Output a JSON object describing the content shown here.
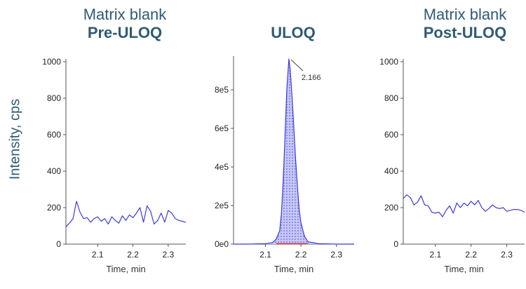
{
  "titles": {
    "left_line1": "Matrix blank",
    "left_line2": "Pre-ULOQ",
    "middle_line1": "ULOQ",
    "right_line1": "Matrix blank",
    "right_line2": "Post-ULOQ"
  },
  "ylabel": "Intensity, cps",
  "colors": {
    "trace": "#3b3be0",
    "fill": "#b9b9f5",
    "baseline": "#d03030",
    "title": "#2f5b74"
  },
  "chart_data": [
    {
      "type": "line",
      "title": "Matrix blank Pre-ULOQ",
      "xlabel": "Time, min",
      "ylabel": "Intensity, cps",
      "xlim": [
        2.01,
        2.35
      ],
      "ylim": [
        0,
        1000
      ],
      "xticks": [
        "2.1",
        "2.2",
        "2.3"
      ],
      "yticks": [
        "0",
        "200",
        "400",
        "600",
        "800",
        "1000"
      ],
      "series": [
        {
          "x": [
            2.01,
            2.02,
            2.03,
            2.04,
            2.05,
            2.06,
            2.07,
            2.08,
            2.09,
            2.1,
            2.11,
            2.12,
            2.13,
            2.14,
            2.15,
            2.16,
            2.17,
            2.18,
            2.19,
            2.2,
            2.21,
            2.22,
            2.23,
            2.24,
            2.25,
            2.26,
            2.27,
            2.28,
            2.29,
            2.3,
            2.31,
            2.32,
            2.33,
            2.34,
            2.35
          ],
          "y": [
            95,
            115,
            140,
            235,
            175,
            140,
            145,
            120,
            140,
            150,
            125,
            140,
            110,
            150,
            130,
            115,
            155,
            130,
            160,
            145,
            170,
            200,
            120,
            210,
            180,
            110,
            130,
            170,
            120,
            185,
            170,
            140,
            130,
            125,
            120
          ]
        }
      ]
    },
    {
      "type": "area",
      "title": "ULOQ",
      "xlabel": "Time, min",
      "xlim": [
        2.01,
        2.35
      ],
      "ylim": [
        0,
        960000
      ],
      "xticks": [
        "2.1",
        "2.2",
        "2.3"
      ],
      "yticks": [
        "0e0",
        "2e5",
        "4e5",
        "6e5",
        "8e5"
      ],
      "peak_label": "2.166",
      "series": [
        {
          "x": [
            2.01,
            2.05,
            2.1,
            2.12,
            2.13,
            2.14,
            2.145,
            2.15,
            2.155,
            2.16,
            2.166,
            2.17,
            2.175,
            2.18,
            2.185,
            2.19,
            2.195,
            2.2,
            2.21,
            2.22,
            2.25,
            2.3,
            2.35
          ],
          "y": [
            0,
            0,
            2000,
            8000,
            25000,
            70000,
            160000,
            330000,
            560000,
            800000,
            960000,
            900000,
            760000,
            600000,
            440000,
            300000,
            180000,
            110000,
            40000,
            12000,
            2000,
            0,
            0
          ]
        }
      ]
    },
    {
      "type": "line",
      "title": "Matrix blank Post-ULOQ",
      "xlabel": "Time, min",
      "xlim": [
        2.01,
        2.35
      ],
      "ylim": [
        0,
        1000
      ],
      "xticks": [
        "2.1",
        "2.2",
        "2.3"
      ],
      "yticks": [
        "0",
        "200",
        "400",
        "600",
        "800",
        "1000"
      ],
      "series": [
        {
          "x": [
            2.01,
            2.02,
            2.03,
            2.04,
            2.05,
            2.06,
            2.07,
            2.08,
            2.09,
            2.1,
            2.11,
            2.12,
            2.13,
            2.14,
            2.15,
            2.16,
            2.17,
            2.18,
            2.19,
            2.2,
            2.21,
            2.22,
            2.23,
            2.24,
            2.25,
            2.26,
            2.27,
            2.28,
            2.29,
            2.3,
            2.31,
            2.32,
            2.33,
            2.34,
            2.35
          ],
          "y": [
            250,
            270,
            255,
            215,
            230,
            265,
            215,
            210,
            175,
            170,
            175,
            150,
            185,
            210,
            170,
            225,
            200,
            225,
            210,
            235,
            215,
            240,
            200,
            180,
            195,
            215,
            200,
            195,
            200,
            180,
            185,
            190,
            190,
            185,
            175
          ]
        }
      ]
    }
  ]
}
